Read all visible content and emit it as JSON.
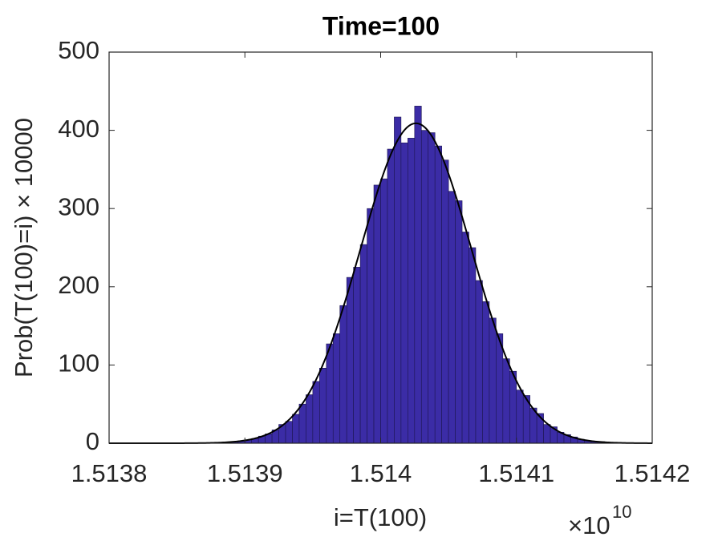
{
  "chart_data": {
    "type": "histogram",
    "title": "Time=100",
    "xlabel": "i=T(100)",
    "ylabel": "Prob(T(100)=i) × 10000",
    "x_multiplier": {
      "base": "×10",
      "exponent": "10"
    },
    "bins": [
      1.51385,
      1.513855,
      1.51386,
      1.513865,
      1.51387,
      1.513875,
      1.51388,
      1.513885,
      1.51389,
      1.513895,
      1.5139,
      1.513905,
      1.51391,
      1.513915,
      1.51392,
      1.513925,
      1.51393,
      1.513935,
      1.51394,
      1.513945,
      1.51395,
      1.513955,
      1.51396,
      1.513965,
      1.51397,
      1.513975,
      1.51398,
      1.513985,
      1.51399,
      1.513995,
      1.514,
      1.514005,
      1.51401,
      1.514015,
      1.51402,
      1.514025,
      1.51403,
      1.514035,
      1.51404,
      1.514045,
      1.51405,
      1.514055,
      1.51406,
      1.514065,
      1.51407,
      1.514075,
      1.51408,
      1.514085,
      1.51409,
      1.514095,
      1.5141,
      1.514105,
      1.51411,
      1.514115,
      1.51412,
      1.514125,
      1.51413,
      1.514135,
      1.51414,
      1.514145,
      1.51415,
      1.514155,
      1.51416,
      1.514165,
      1.51417,
      1.514175,
      1.51418,
      1.514185,
      1.51419,
      1.514195,
      1.5142
    ],
    "values": [
      0,
      0,
      0,
      0,
      0,
      1,
      1,
      1,
      2,
      3,
      4,
      6,
      9,
      12,
      17,
      24,
      28,
      37,
      50,
      62,
      79,
      96,
      127,
      140,
      176,
      212,
      225,
      254,
      300,
      330,
      338,
      376,
      417,
      384,
      390,
      431,
      400,
      397,
      380,
      362,
      322,
      310,
      270,
      250,
      208,
      181,
      160,
      140,
      108,
      92,
      68,
      61,
      45,
      38,
      24,
      21,
      14,
      11,
      8,
      5,
      3,
      2,
      2,
      1,
      1,
      0,
      0,
      0,
      0,
      0
    ],
    "color": "#3b2ca6",
    "edge_color": "#1d1650",
    "fit": {
      "mean": 1.514026,
      "std": 4.09e-05,
      "peak": 409,
      "color": "#000000"
    },
    "xlim": [
      1.5138,
      1.5142
    ],
    "xticks": [
      1.5138,
      1.5139,
      1.514,
      1.5141,
      1.5142
    ],
    "ylim": [
      0,
      500
    ],
    "yticks": [
      0,
      100,
      200,
      300,
      400,
      500
    ]
  }
}
